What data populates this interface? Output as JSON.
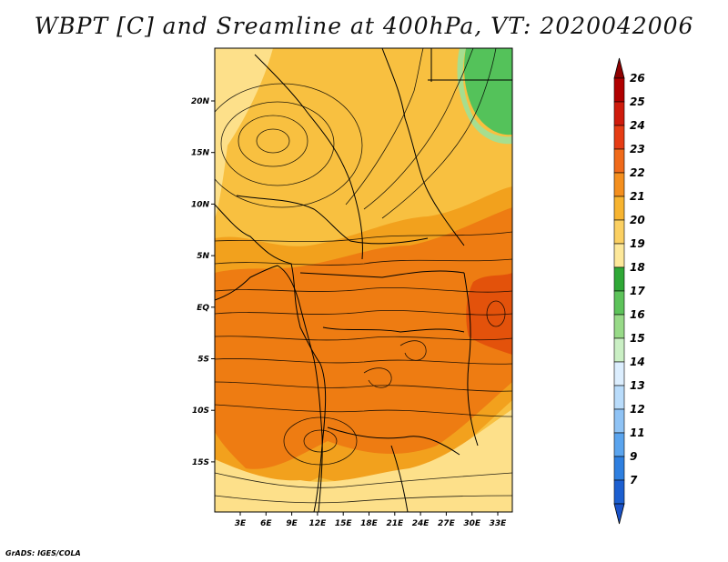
{
  "title": "WBPT [C] and Sreamline at 400hPa, VT: 2020042006",
  "credit": "GrADS: IGES/COLA",
  "map": {
    "lon_ticks": [
      "3E",
      "6E",
      "9E",
      "12E",
      "15E",
      "18E",
      "21E",
      "24E",
      "27E",
      "30E",
      "33E"
    ],
    "lat_ticks": [
      "20N",
      "15N",
      "10N",
      "5N",
      "EQ",
      "5S",
      "10S",
      "15S"
    ],
    "fill_colors": {
      "c19_20": "#fde08a",
      "c20_21": "#f8c040",
      "c21_22": "#f2a11d",
      "c22_23": "#ee7c12",
      "c23_24": "#e3520b",
      "c17_18": "#54c25a",
      "c18_19": "#a6de8f"
    }
  },
  "colorbar": {
    "labels": [
      "26",
      "25",
      "24",
      "23",
      "22",
      "21",
      "20",
      "19",
      "18",
      "17",
      "16",
      "15",
      "14",
      "13",
      "12",
      "11",
      "9",
      "7"
    ],
    "colors": [
      "#b00000",
      "#cf1b0c",
      "#e63c14",
      "#f06a1a",
      "#f48f1e",
      "#f7b430",
      "#fbd062",
      "#fde89a",
      "#2fa836",
      "#5dc35a",
      "#98da88",
      "#caefc4",
      "#dceefe",
      "#b9dcfb",
      "#8fc3f5",
      "#5aa4ee",
      "#2e7fe0",
      "#1c5fd0"
    ],
    "top_arrow_color": "#8e0000",
    "bottom_arrow_color": "#1a52c8"
  }
}
